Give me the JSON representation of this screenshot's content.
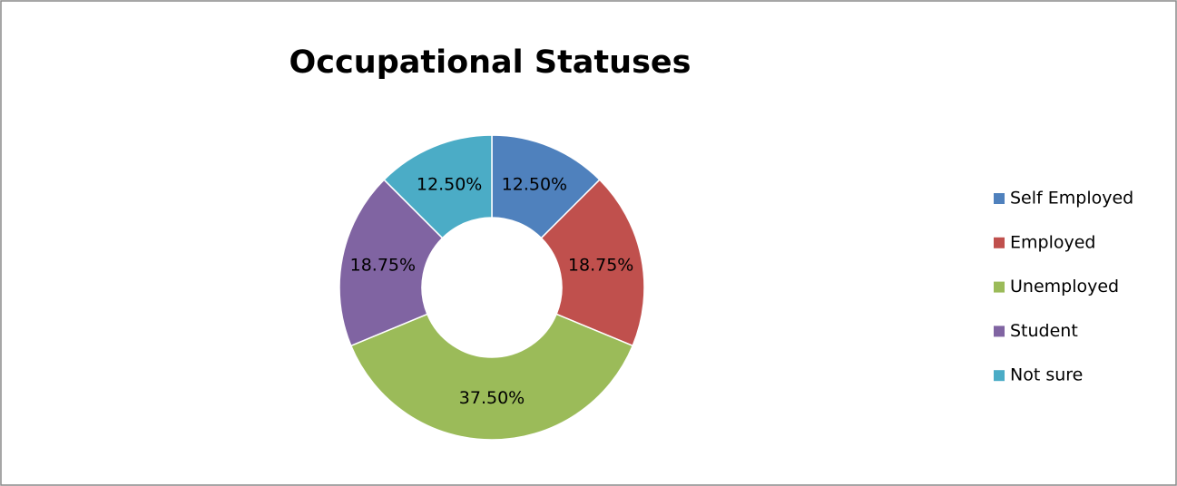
{
  "chart_data": {
    "type": "donut",
    "title": "Occupational Statuses",
    "categories": [
      "Self Employed",
      "Employed",
      "Unemployed",
      "Student",
      "Not sure"
    ],
    "values": [
      12.5,
      18.75,
      37.5,
      18.75,
      12.5
    ],
    "value_labels": [
      "12.50%",
      "18.75%",
      "37.50%",
      "18.75%",
      "12.50%"
    ],
    "colors": [
      "#4f81bd",
      "#c0504d",
      "#9bbb59",
      "#8064a2",
      "#4bacc6"
    ],
    "legend": "right"
  }
}
